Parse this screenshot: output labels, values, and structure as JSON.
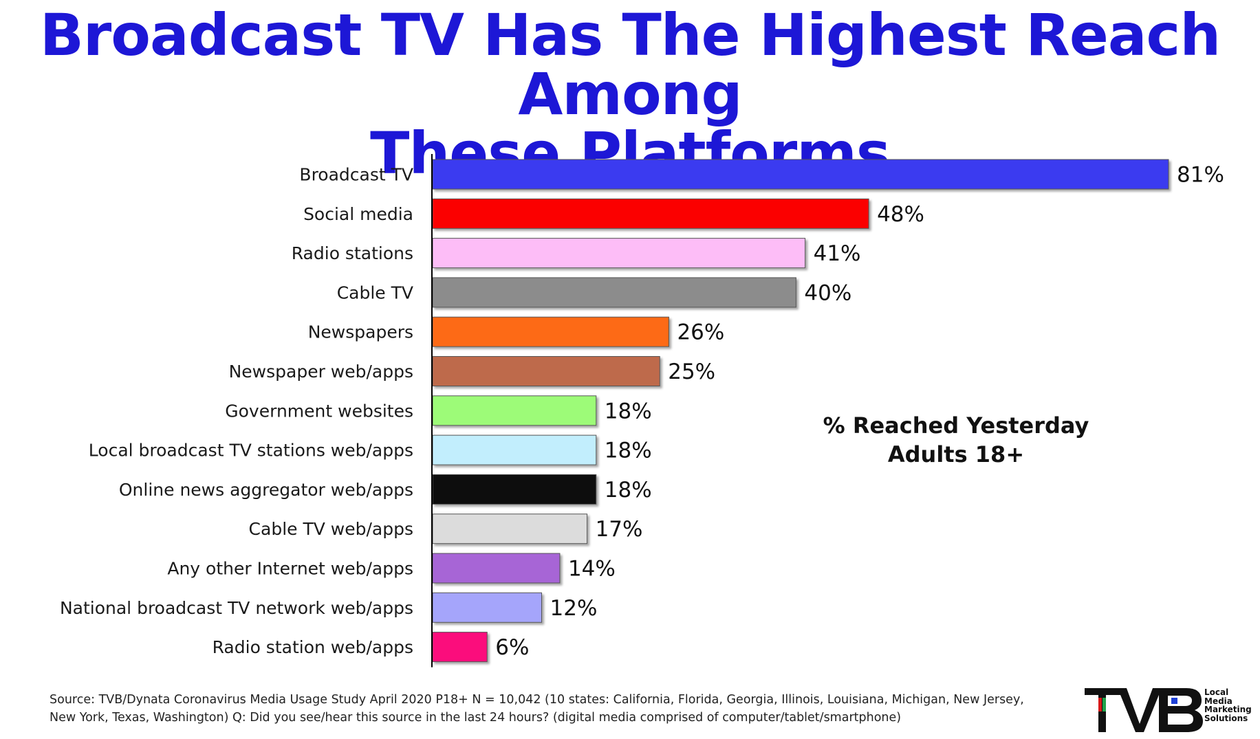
{
  "title_lines": [
    "Broadcast TV Has The Highest Reach Among",
    "These Platforms"
  ],
  "annotation_lines": [
    "% Reached Yesterday",
    "Adults 18+"
  ],
  "source": "Source: TVB/Dynata  Coronavirus Media Usage Study April 2020  P18+  N = 10,042 (10 states: California, Florida, Georgia, Illinois, Louisiana, Michigan, New Jersey, New York, Texas, Washington)  Q: Did you see/hear this source in the last 24 hours? (digital media comprised of computer/tablet/smartphone)",
  "logo": {
    "text": "TVB",
    "tagline": [
      "Local",
      "Media",
      "Marketing",
      "Solutions"
    ],
    "colors": {
      "main": "#111111",
      "accent_red": "#d91a1a",
      "accent_green": "#1fa34a",
      "accent_blue": "#1d3fd6"
    }
  },
  "chart_data": {
    "type": "bar",
    "orientation": "horizontal",
    "categories": [
      "Broadcast TV",
      "Social media",
      "Radio stations",
      "Cable TV",
      "Newspapers",
      "Newspaper web/apps",
      "Government websites",
      "Local broadcast TV stations web/apps",
      "Online news aggregator web/apps",
      "Cable TV web/apps",
      "Any other Internet web/apps",
      "National broadcast TV network web/apps",
      "Radio station web/apps"
    ],
    "values": [
      81,
      48,
      41,
      40,
      26,
      25,
      18,
      18,
      18,
      17,
      14,
      12,
      6
    ],
    "value_labels": [
      "81%",
      "48%",
      "41%",
      "40%",
      "26%",
      "25%",
      "18%",
      "18%",
      "18%",
      "17%",
      "14%",
      "12%",
      "6%"
    ],
    "colors": [
      "#3b3bf0",
      "#fb0606",
      "#fdbdf7",
      "#8c8c8c",
      "#fd6a12",
      "#be6a4c",
      "#9dfb78",
      "#c2eefd",
      "#0a0a0a",
      "#dcdcdc",
      "#a765d6",
      "#a5a5fb",
      "#fb0a7c"
    ],
    "xlim": [
      0,
      81
    ],
    "grid": false,
    "legend": "none"
  }
}
